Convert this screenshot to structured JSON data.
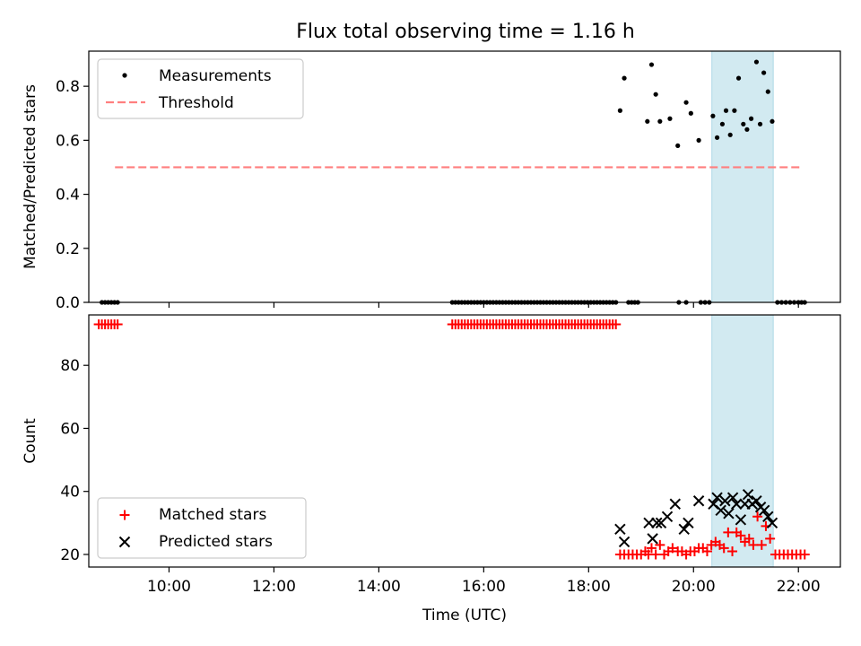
{
  "figure": {
    "title": "Flux total observing time = 1.16 h"
  },
  "chart_data": [
    {
      "type": "scatter",
      "ylabel": "Matched/Predicted stars",
      "xlim": [
        8.47,
        22.8
      ],
      "ylim": [
        0.0,
        0.93
      ],
      "yticks": [
        0.0,
        0.2,
        0.4,
        0.6,
        0.8
      ],
      "yticklabels": [
        "0.0",
        "0.2",
        "0.4",
        "0.6",
        "0.8"
      ],
      "legend_location": "upper left",
      "shaded_interval": {
        "x": [
          20.35,
          21.52
        ],
        "color": "#add8e6"
      },
      "threshold": {
        "name": "Threshold",
        "y": 0.5,
        "x": [
          8.97,
          22.04
        ],
        "color": "#ff7f7f",
        "style": "dashed"
      },
      "measurements": {
        "name": "Measurements",
        "color": "#000000",
        "zero_x": [
          8.72,
          8.78,
          8.84,
          8.9,
          8.96,
          9.02,
          15.4,
          15.46,
          15.52,
          15.58,
          15.64,
          15.7,
          15.76,
          15.82,
          15.88,
          15.94,
          16.0,
          16.06,
          16.12,
          16.18,
          16.24,
          16.3,
          16.36,
          16.42,
          16.48,
          16.54,
          16.6,
          16.66,
          16.72,
          16.78,
          16.84,
          16.9,
          16.96,
          17.02,
          17.08,
          17.14,
          17.2,
          17.26,
          17.32,
          17.38,
          17.44,
          17.5,
          17.56,
          17.62,
          17.68,
          17.74,
          17.8,
          17.86,
          17.92,
          17.98,
          18.04,
          18.1,
          18.16,
          18.22,
          18.28,
          18.34,
          18.4,
          18.46,
          18.52,
          18.76,
          18.82,
          18.88,
          18.94,
          19.72,
          19.86,
          20.14,
          20.22,
          20.3,
          21.6,
          21.68,
          21.76,
          21.84,
          21.92,
          22.0,
          22.06,
          22.12
        ],
        "points": [
          {
            "x": 18.6,
            "y": 0.71
          },
          {
            "x": 18.68,
            "y": 0.83
          },
          {
            "x": 19.12,
            "y": 0.67
          },
          {
            "x": 19.2,
            "y": 0.88
          },
          {
            "x": 19.28,
            "y": 0.77
          },
          {
            "x": 19.36,
            "y": 0.67
          },
          {
            "x": 19.55,
            "y": 0.68
          },
          {
            "x": 19.7,
            "y": 0.58
          },
          {
            "x": 19.86,
            "y": 0.74
          },
          {
            "x": 19.95,
            "y": 0.7
          },
          {
            "x": 20.1,
            "y": 0.6
          },
          {
            "x": 20.37,
            "y": 0.69
          },
          {
            "x": 20.45,
            "y": 0.61
          },
          {
            "x": 20.55,
            "y": 0.66
          },
          {
            "x": 20.62,
            "y": 0.71
          },
          {
            "x": 20.7,
            "y": 0.62
          },
          {
            "x": 20.78,
            "y": 0.71
          },
          {
            "x": 20.86,
            "y": 0.83
          },
          {
            "x": 20.95,
            "y": 0.66
          },
          {
            "x": 21.02,
            "y": 0.64
          },
          {
            "x": 21.1,
            "y": 0.68
          },
          {
            "x": 21.2,
            "y": 0.89
          },
          {
            "x": 21.27,
            "y": 0.66
          },
          {
            "x": 21.34,
            "y": 0.85
          },
          {
            "x": 21.42,
            "y": 0.78
          },
          {
            "x": 21.5,
            "y": 0.67
          }
        ]
      }
    },
    {
      "type": "scatter",
      "xlabel": "Time (UTC)",
      "ylabel": "Count",
      "xlim": [
        8.47,
        22.8
      ],
      "ylim": [
        16.0,
        96.0
      ],
      "xticks": [
        10,
        12,
        14,
        16,
        18,
        20,
        22
      ],
      "xticklabels": [
        "10:00",
        "12:00",
        "14:00",
        "16:00",
        "18:00",
        "20:00",
        "22:00"
      ],
      "yticks": [
        20,
        40,
        60,
        80
      ],
      "yticklabels": [
        "20",
        "40",
        "60",
        "80"
      ],
      "legend_location": "lower left",
      "shaded_interval": {
        "x": [
          20.35,
          21.52
        ],
        "color": "#add8e6"
      },
      "series": [
        {
          "name": "Matched stars",
          "marker": "+",
          "color": "#ff0000",
          "x": [
            8.66,
            8.72,
            8.78,
            8.84,
            8.9,
            8.96,
            9.02,
            15.4,
            15.46,
            15.52,
            15.58,
            15.64,
            15.7,
            15.76,
            15.82,
            15.88,
            15.94,
            16.0,
            16.06,
            16.12,
            16.18,
            16.24,
            16.3,
            16.36,
            16.42,
            16.48,
            16.54,
            16.6,
            16.66,
            16.72,
            16.78,
            16.84,
            16.9,
            16.96,
            17.02,
            17.08,
            17.14,
            17.2,
            17.26,
            17.32,
            17.38,
            17.44,
            17.5,
            17.56,
            17.62,
            17.68,
            17.74,
            17.8,
            17.86,
            17.92,
            17.98,
            18.04,
            18.1,
            18.16,
            18.22,
            18.28,
            18.34,
            18.4,
            18.46,
            18.52,
            18.6,
            18.68,
            18.76,
            18.84,
            18.92,
            19.0,
            19.08,
            19.14,
            19.2,
            19.28,
            19.36,
            19.44,
            19.52,
            19.6,
            19.7,
            19.78,
            19.86,
            19.94,
            20.02,
            20.1,
            20.18,
            20.26,
            20.34,
            20.42,
            20.5,
            20.58,
            20.66,
            20.74,
            20.82,
            20.9,
            20.98,
            21.06,
            21.14,
            21.22,
            21.3,
            21.38,
            21.46,
            21.56,
            21.64,
            21.72,
            21.8,
            21.88,
            21.96,
            22.04,
            22.12
          ],
          "y": [
            93,
            93,
            93,
            93,
            93,
            93,
            93,
            93,
            93,
            93,
            93,
            93,
            93,
            93,
            93,
            93,
            93,
            93,
            93,
            93,
            93,
            93,
            93,
            93,
            93,
            93,
            93,
            93,
            93,
            93,
            93,
            93,
            93,
            93,
            93,
            93,
            93,
            93,
            93,
            93,
            93,
            93,
            93,
            93,
            93,
            93,
            93,
            93,
            93,
            93,
            93,
            93,
            93,
            93,
            93,
            93,
            93,
            93,
            93,
            93,
            20,
            20,
            20,
            20,
            20,
            20,
            21,
            20,
            22,
            20,
            23,
            20,
            21,
            22,
            21,
            21,
            20,
            21,
            21,
            22,
            22,
            21,
            23,
            24,
            23,
            22,
            27,
            21,
            27,
            26,
            24,
            25,
            23,
            32,
            23,
            29,
            25,
            20,
            20,
            20,
            20,
            20,
            20,
            20,
            20
          ]
        },
        {
          "name": "Predicted stars",
          "marker": "x",
          "color": "#000000",
          "x": [
            18.6,
            18.68,
            19.15,
            19.22,
            19.3,
            19.38,
            19.5,
            19.65,
            19.82,
            19.9,
            20.1,
            20.38,
            20.45,
            20.52,
            20.6,
            20.67,
            20.75,
            20.82,
            20.9,
            20.98,
            21.04,
            21.12,
            21.2,
            21.28,
            21.35,
            21.42,
            21.5
          ],
          "y": [
            28,
            24,
            30,
            25,
            30,
            30,
            32,
            36,
            28,
            30,
            37,
            36,
            38,
            34,
            37,
            33,
            38,
            36,
            31,
            36,
            39,
            36,
            37,
            35,
            34,
            32,
            30
          ]
        }
      ]
    }
  ]
}
